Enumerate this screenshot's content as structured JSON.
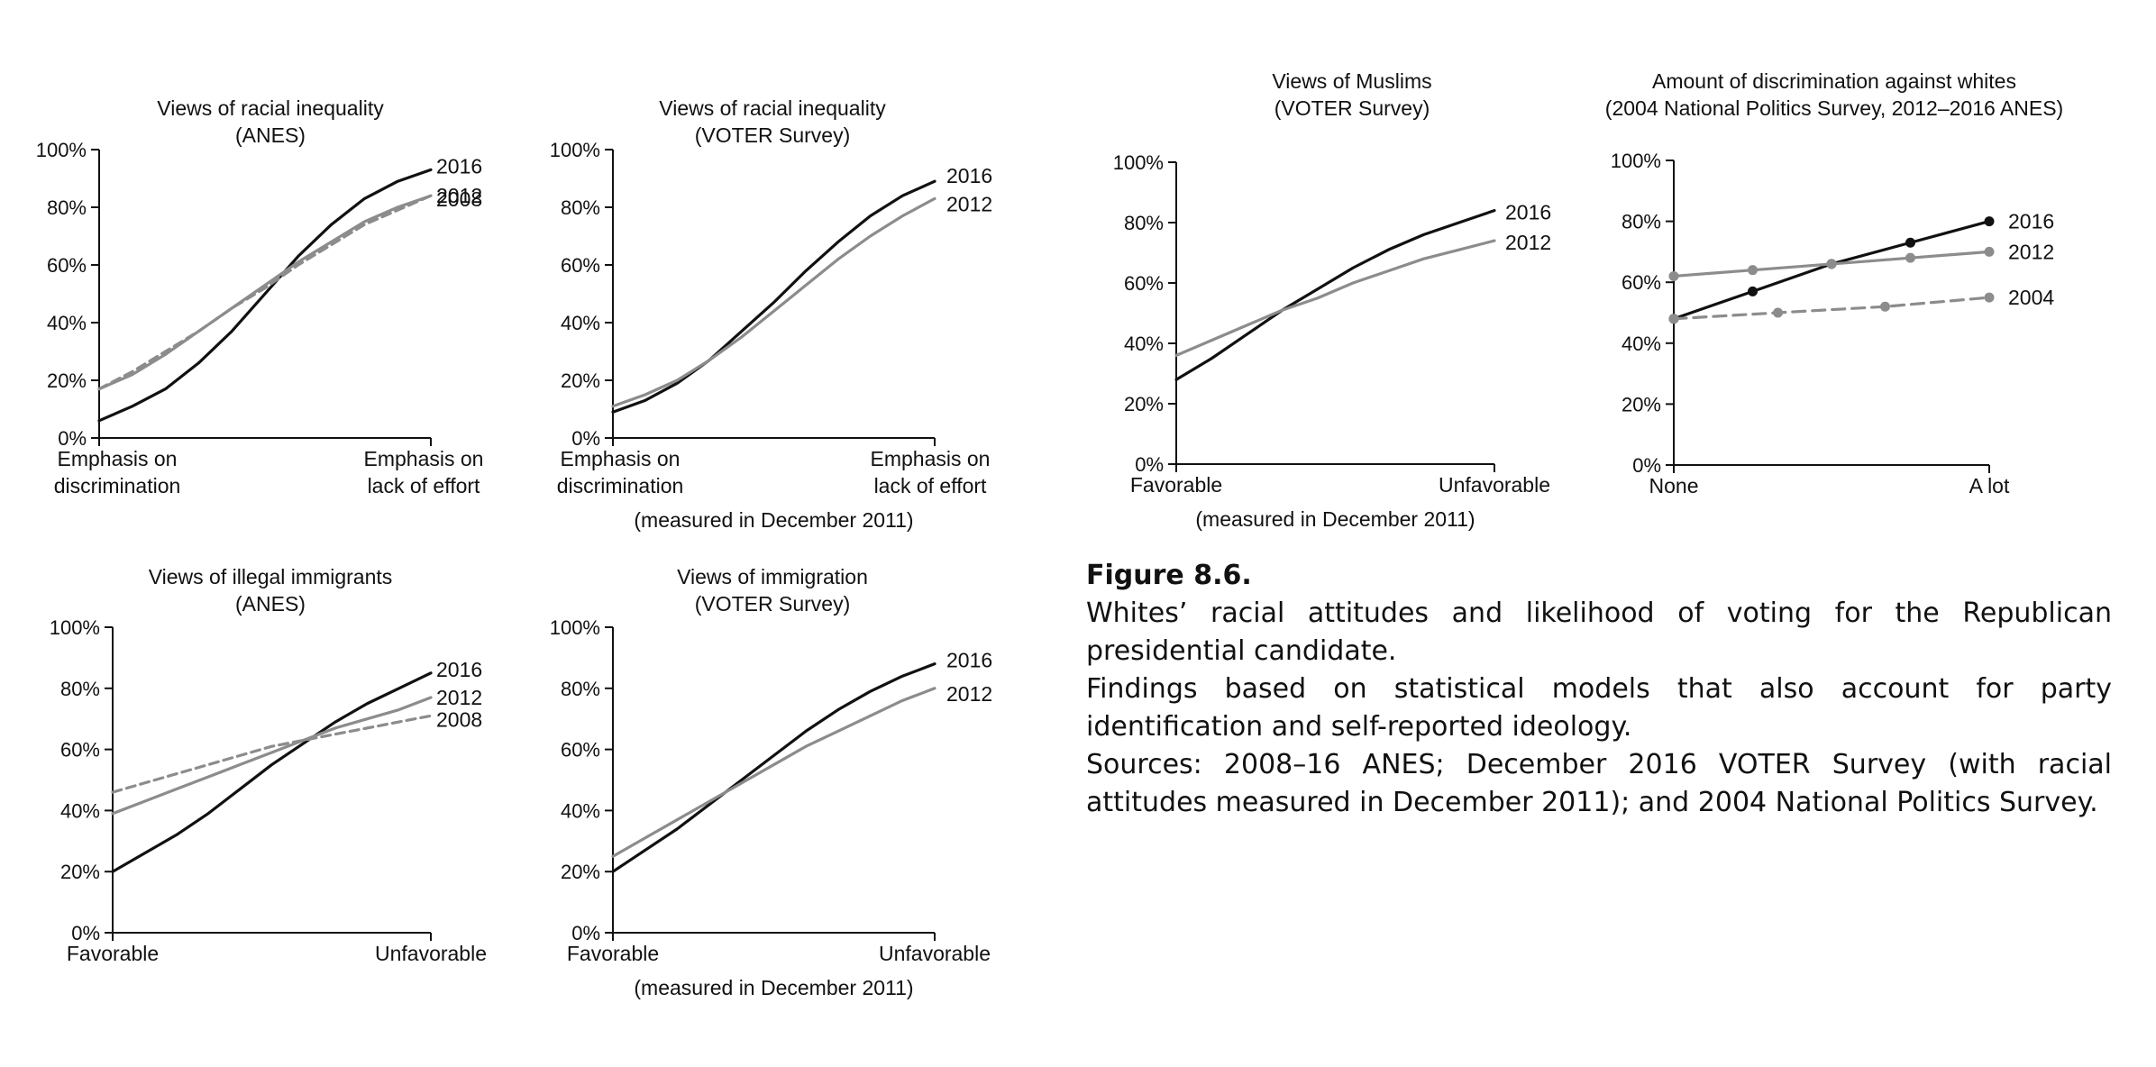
{
  "chart_data": [
    {
      "id": "p1",
      "type": "line",
      "title_lines": [
        "Views of racial inequality",
        "(ANES)"
      ],
      "x_labels": [
        [
          "Emphasis on",
          "discrimination"
        ],
        [
          "Emphasis on",
          "lack of effort"
        ]
      ],
      "note": "",
      "ylim": [
        0,
        100
      ],
      "yticks": [
        "0%",
        "20%",
        "40%",
        "60%",
        "80%",
        "100%"
      ],
      "grid": false,
      "series": [
        {
          "name": "2016",
          "color": "#111111",
          "dash": "",
          "markers": false,
          "values": [
            6,
            11,
            17,
            26,
            37,
            50,
            63,
            74,
            83,
            89,
            93
          ]
        },
        {
          "name": "2012",
          "color": "#8c8c8c",
          "dash": "",
          "markers": false,
          "values": [
            17,
            22,
            29,
            37,
            45,
            53,
            61,
            68,
            75,
            80,
            84
          ]
        },
        {
          "name": "2008",
          "color": "#8c8c8c",
          "dash": "10,6",
          "markers": false,
          "values": [
            17,
            23,
            30,
            37,
            45,
            52,
            60,
            67,
            74,
            79,
            84
          ]
        }
      ]
    },
    {
      "id": "p2",
      "type": "line",
      "title_lines": [
        "Views of racial inequality",
        "(VOTER Survey)"
      ],
      "x_labels": [
        [
          "Emphasis on",
          "discrimination"
        ],
        [
          "Emphasis on",
          "lack of effort"
        ]
      ],
      "note": "(measured in December 2011)",
      "ylim": [
        0,
        100
      ],
      "yticks": [
        "0%",
        "20%",
        "40%",
        "60%",
        "80%",
        "100%"
      ],
      "grid": false,
      "series": [
        {
          "name": "2016",
          "color": "#111111",
          "dash": "",
          "markers": false,
          "values": [
            9,
            13,
            19,
            27,
            37,
            47,
            58,
            68,
            77,
            84,
            89
          ]
        },
        {
          "name": "2012",
          "color": "#8c8c8c",
          "dash": "",
          "markers": false,
          "values": [
            11,
            15,
            20,
            27,
            35,
            44,
            53,
            62,
            70,
            77,
            83
          ]
        }
      ]
    },
    {
      "id": "p3",
      "type": "line",
      "title_lines": [
        "Views of Muslims",
        "(VOTER Survey)"
      ],
      "x_labels": [
        [
          "Favorable"
        ],
        [
          "Unfavorable"
        ]
      ],
      "note": "(measured in December 2011)",
      "ylim": [
        0,
        100
      ],
      "yticks": [
        "0%",
        "20%",
        "40%",
        "60%",
        "80%",
        "100%"
      ],
      "grid": false,
      "series": [
        {
          "name": "2016",
          "color": "#111111",
          "dash": "",
          "markers": false,
          "values": [
            28,
            35,
            43,
            51,
            58,
            65,
            71,
            76,
            80,
            84
          ]
        },
        {
          "name": "2012",
          "color": "#8c8c8c",
          "dash": "",
          "markers": false,
          "values": [
            36,
            41,
            46,
            51,
            55,
            60,
            64,
            68,
            71,
            74
          ]
        }
      ]
    },
    {
      "id": "p4",
      "type": "line",
      "title_lines": [
        "Amount of discrimination against whites",
        "(2004 National Politics Survey, 2012–2016 ANES)"
      ],
      "x_labels": [
        [
          "None"
        ],
        [
          "A lot"
        ]
      ],
      "note": "",
      "ylim": [
        0,
        100
      ],
      "yticks": [
        "0%",
        "20%",
        "40%",
        "60%",
        "80%",
        "100%"
      ],
      "grid": false,
      "series": [
        {
          "name": "2016",
          "color": "#111111",
          "dash": "",
          "markers": true,
          "x": [
            0,
            0.25,
            0.5,
            0.75,
            1
          ],
          "values": [
            48,
            57,
            66,
            73,
            80
          ]
        },
        {
          "name": "2012",
          "color": "#8c8c8c",
          "dash": "",
          "markers": true,
          "x": [
            0,
            0.25,
            0.5,
            0.75,
            1
          ],
          "values": [
            62,
            64,
            66,
            68,
            70
          ]
        },
        {
          "name": "2004",
          "color": "#8c8c8c",
          "dash": "14,8",
          "markers": true,
          "x": [
            0,
            0.33,
            0.67,
            1
          ],
          "values": [
            48,
            50,
            52,
            55
          ]
        }
      ]
    },
    {
      "id": "p5",
      "type": "line",
      "title_lines": [
        "Views of illegal immigrants",
        "(ANES)"
      ],
      "x_labels": [
        [
          "Favorable"
        ],
        [
          "Unfavorable"
        ]
      ],
      "note": "",
      "ylim": [
        0,
        100
      ],
      "yticks": [
        "0%",
        "20%",
        "40%",
        "60%",
        "80%",
        "100%"
      ],
      "grid": false,
      "series": [
        {
          "name": "2016",
          "color": "#111111",
          "dash": "",
          "markers": false,
          "values": [
            20,
            26,
            32,
            39,
            47,
            55,
            62,
            69,
            75,
            80,
            85
          ]
        },
        {
          "name": "2012",
          "color": "#8c8c8c",
          "dash": "",
          "markers": false,
          "values": [
            39,
            43,
            47,
            51,
            55,
            59,
            63,
            67,
            70,
            73,
            77
          ]
        },
        {
          "name": "2008",
          "color": "#8c8c8c",
          "dash": "10,6",
          "markers": false,
          "values": [
            46,
            49,
            52,
            55,
            58,
            61,
            63,
            65,
            67,
            69,
            71
          ]
        }
      ]
    },
    {
      "id": "p6",
      "type": "line",
      "title_lines": [
        "Views of immigration",
        "(VOTER Survey)"
      ],
      "x_labels": [
        [
          "Favorable"
        ],
        [
          "Unfavorable"
        ]
      ],
      "note": "(measured in December 2011)",
      "ylim": [
        0,
        100
      ],
      "yticks": [
        "0%",
        "20%",
        "40%",
        "60%",
        "80%",
        "100%"
      ],
      "grid": false,
      "series": [
        {
          "name": "2016",
          "color": "#111111",
          "dash": "",
          "markers": false,
          "values": [
            20,
            27,
            34,
            42,
            50,
            58,
            66,
            73,
            79,
            84,
            88
          ]
        },
        {
          "name": "2012",
          "color": "#8c8c8c",
          "dash": "",
          "markers": false,
          "values": [
            25,
            31,
            37,
            43,
            49,
            55,
            61,
            66,
            71,
            76,
            80
          ]
        }
      ]
    }
  ],
  "caption": {
    "figure_label": "Figure 8.6.",
    "lines": [
      "Whites’ racial attitudes and likelihood of voting for the Republican presidential candidate.",
      "Findings based on statistical models that also account for party identification and self-reported ideology.",
      "Sources: 2008–16 ANES; December 2016 VOTER Survey (with racial attitudes measured in December 2011); and 2004 National Politics Survey."
    ]
  }
}
